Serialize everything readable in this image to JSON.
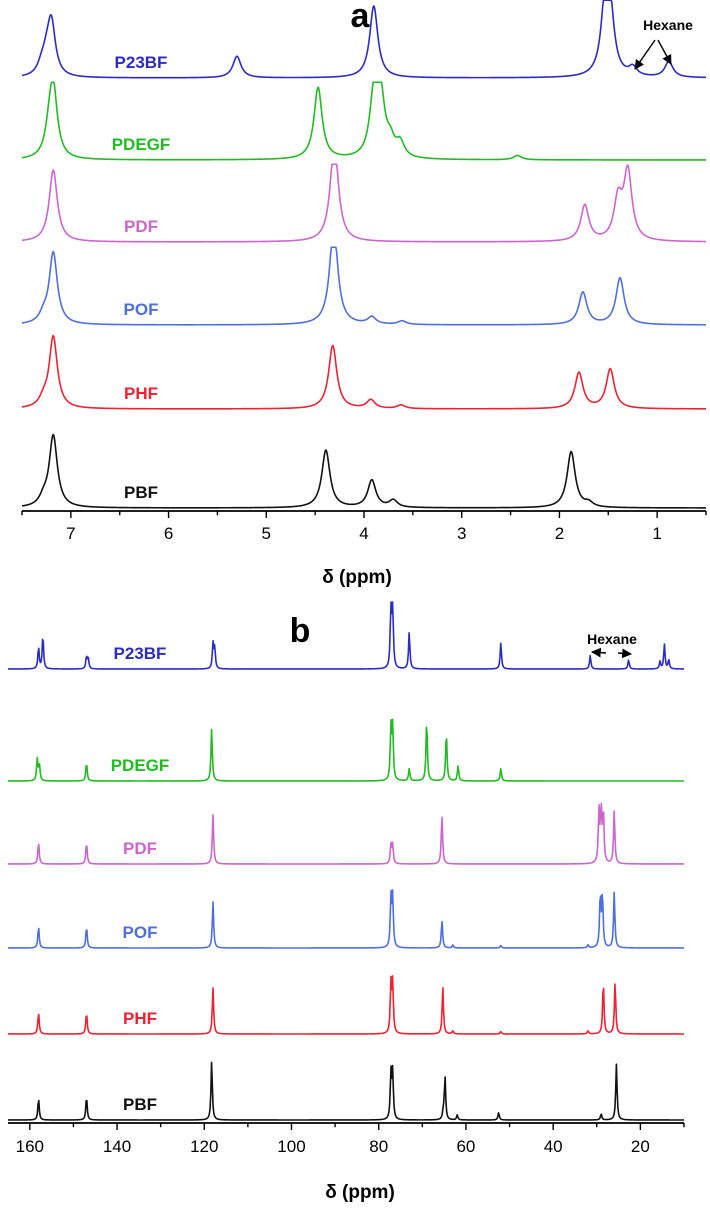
{
  "chart_data": [
    {
      "type": "line",
      "panel_letter": "a",
      "xlabel": "δ (ppm)",
      "xlim": [
        7.5,
        0.5
      ],
      "x_reversed": true,
      "xticks": [
        7,
        6,
        5,
        4,
        3,
        2,
        1
      ],
      "grid": false,
      "annotations": [
        {
          "text": "Hexane",
          "points": [
            1.25,
            0.88
          ]
        }
      ],
      "series": [
        {
          "name": "P23BF",
          "color": "#2b2bc8",
          "peaks": [
            [
              7.2,
              0.75
            ],
            [
              7.25,
              0.2
            ],
            [
              7.3,
              0.12
            ],
            [
              5.3,
              0.3
            ],
            [
              3.9,
              1.0
            ],
            [
              1.53,
              1.0
            ],
            [
              1.48,
              0.75
            ],
            [
              1.25,
              0.12
            ],
            [
              0.88,
              0.22
            ]
          ]
        },
        {
          "name": "PDEGF",
          "color": "#22bb22",
          "peaks": [
            [
              7.18,
              0.95
            ],
            [
              7.22,
              0.3
            ],
            [
              4.47,
              1.0
            ],
            [
              3.9,
              0.82
            ],
            [
              3.83,
              0.82
            ],
            [
              3.73,
              0.2
            ],
            [
              3.63,
              0.2
            ],
            [
              2.43,
              0.06
            ]
          ]
        },
        {
          "name": "PDF",
          "color": "#cc66cc",
          "peaks": [
            [
              7.18,
              1.0
            ],
            [
              4.3,
              0.88
            ],
            [
              4.31,
              0.5
            ],
            [
              1.74,
              0.5
            ],
            [
              1.4,
              0.55
            ],
            [
              1.3,
              0.95
            ]
          ]
        },
        {
          "name": "POF",
          "color": "#4f6fe0",
          "peaks": [
            [
              7.18,
              1.0
            ],
            [
              7.28,
              0.1
            ],
            [
              4.31,
              0.88
            ],
            [
              4.31,
              0.5
            ],
            [
              3.92,
              0.1
            ],
            [
              3.61,
              0.05
            ],
            [
              1.76,
              0.45
            ],
            [
              1.38,
              0.65
            ]
          ]
        },
        {
          "name": "PHF",
          "color": "#ee2233",
          "peaks": [
            [
              7.18,
              1.0
            ],
            [
              7.28,
              0.1
            ],
            [
              4.32,
              0.88
            ],
            [
              3.93,
              0.12
            ],
            [
              3.62,
              0.05
            ],
            [
              1.8,
              0.5
            ],
            [
              1.48,
              0.55
            ]
          ]
        },
        {
          "name": "PBF",
          "color": "#111111",
          "peaks": [
            [
              7.18,
              1.0
            ],
            [
              7.28,
              0.1
            ],
            [
              4.39,
              0.8
            ],
            [
              3.92,
              0.38
            ],
            [
              3.7,
              0.1
            ],
            [
              1.88,
              0.78
            ],
            [
              1.7,
              0.06
            ]
          ]
        }
      ]
    },
    {
      "type": "line",
      "panel_letter": "b",
      "xlabel": "δ (ppm)",
      "xlim": [
        165,
        10
      ],
      "x_reversed": true,
      "xticks": [
        160,
        140,
        120,
        100,
        80,
        60,
        40,
        20
      ],
      "grid": false,
      "annotations": [
        {
          "text": "Hexane",
          "points": [
            31.5,
            22.7
          ]
        }
      ],
      "series": [
        {
          "name": "P23BF",
          "color": "#2b2bc8",
          "peaks": [
            [
              158,
              0.35
            ],
            [
              157,
              0.55
            ],
            [
              147,
              0.2
            ],
            [
              146.6,
              0.16
            ],
            [
              118,
              0.4
            ],
            [
              117.6,
              0.33
            ],
            [
              77.2,
              1.0
            ],
            [
              76.8,
              1.0
            ],
            [
              73,
              0.6
            ],
            [
              52,
              0.42
            ],
            [
              31.5,
              0.22
            ],
            [
              22.7,
              0.15
            ],
            [
              15.5,
              0.12
            ],
            [
              14.5,
              0.4
            ],
            [
              13.5,
              0.15
            ]
          ]
        },
        {
          "name": "PDEGF",
          "color": "#22bb22",
          "peaks": [
            [
              158.3,
              0.35
            ],
            [
              157.8,
              0.25
            ],
            [
              147,
              0.3
            ],
            [
              118.3,
              0.85
            ],
            [
              77.2,
              0.85
            ],
            [
              76.8,
              0.85
            ],
            [
              73,
              0.2
            ],
            [
              69,
              1.0
            ],
            [
              64.5,
              0.8
            ],
            [
              61.8,
              0.25
            ],
            [
              52,
              0.2
            ]
          ]
        },
        {
          "name": "PDF",
          "color": "#cc66cc",
          "peaks": [
            [
              158,
              0.35
            ],
            [
              147,
              0.35
            ],
            [
              118,
              0.8
            ],
            [
              77.2,
              0.3
            ],
            [
              76.8,
              0.3
            ],
            [
              65.5,
              0.8
            ],
            [
              29.5,
              0.85
            ],
            [
              29,
              0.85
            ],
            [
              28.5,
              0.85
            ],
            [
              26,
              0.85
            ]
          ]
        },
        {
          "name": "POF",
          "color": "#4f6fe0",
          "peaks": [
            [
              158,
              0.35
            ],
            [
              147,
              0.35
            ],
            [
              118,
              0.75
            ],
            [
              77.2,
              0.8
            ],
            [
              76.8,
              0.8
            ],
            [
              65.5,
              0.45
            ],
            [
              63,
              0.05
            ],
            [
              52,
              0.04
            ],
            [
              32,
              0.05
            ],
            [
              29.2,
              0.85
            ],
            [
              28.7,
              0.85
            ],
            [
              26,
              0.9
            ]
          ]
        },
        {
          "name": "PHF",
          "color": "#ee2233",
          "peaks": [
            [
              158,
              0.35
            ],
            [
              147,
              0.35
            ],
            [
              118,
              0.75
            ],
            [
              77.2,
              0.8
            ],
            [
              76.8,
              0.8
            ],
            [
              65.3,
              0.75
            ],
            [
              63,
              0.05
            ],
            [
              52,
              0.04
            ],
            [
              32,
              0.05
            ],
            [
              28.5,
              0.85
            ],
            [
              25.8,
              0.85
            ]
          ]
        },
        {
          "name": "PBF",
          "color": "#111111",
          "peaks": [
            [
              158,
              0.35
            ],
            [
              147,
              0.38
            ],
            [
              118.3,
              0.95
            ],
            [
              77.2,
              0.75
            ],
            [
              76.8,
              0.75
            ],
            [
              65.2,
              0.12
            ],
            [
              64.8,
              0.7
            ],
            [
              62,
              0.08
            ],
            [
              52.5,
              0.12
            ],
            [
              29,
              0.1
            ],
            [
              25.5,
              0.9
            ]
          ]
        }
      ]
    }
  ]
}
